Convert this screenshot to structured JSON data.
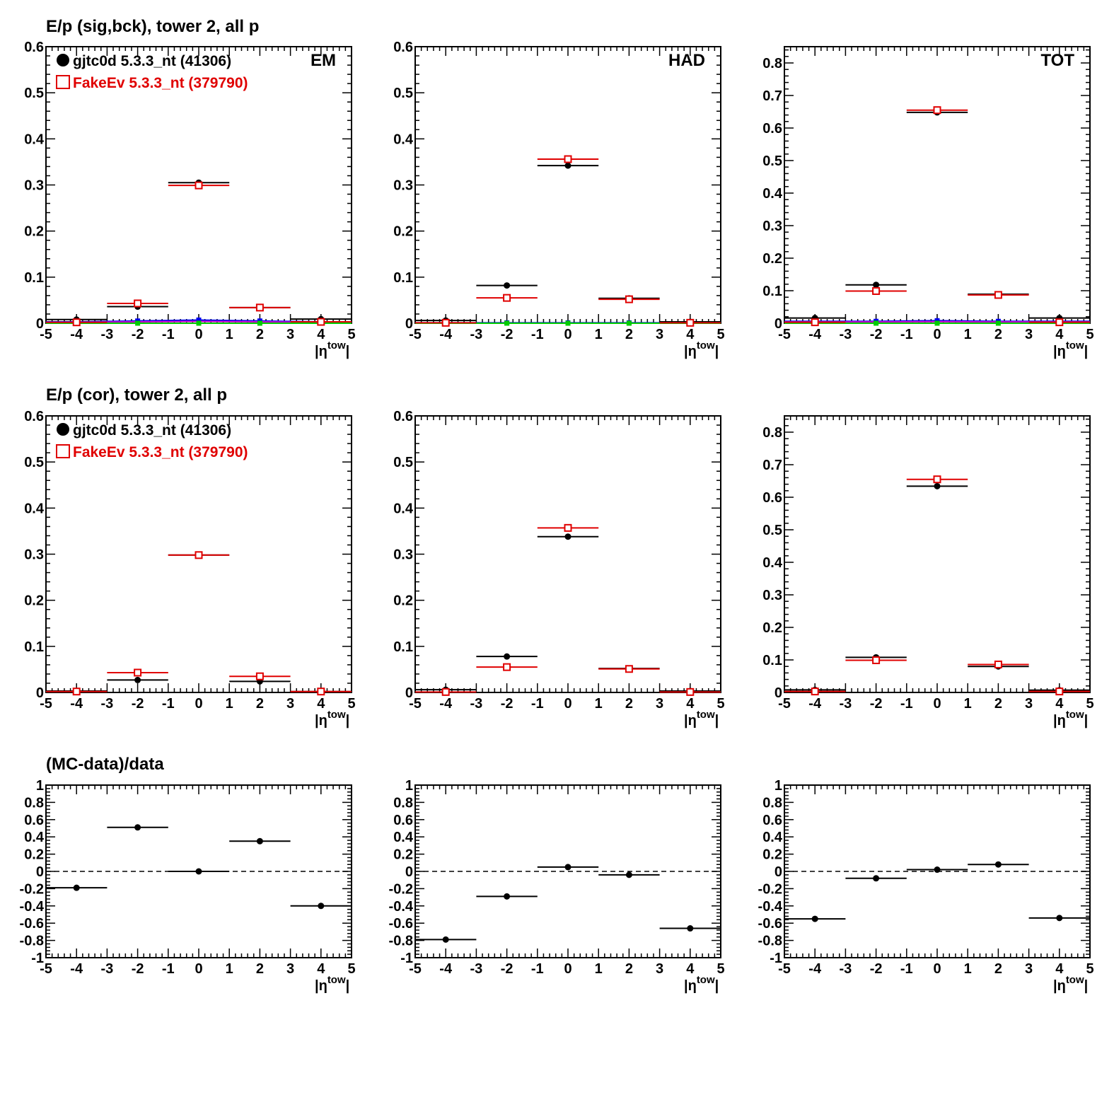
{
  "rows": [
    {
      "title": "E/p (sig,bck), tower 2, all p"
    },
    {
      "title": "E/p (cor), tower 2, all p"
    },
    {
      "title": "(MC-data)/data"
    }
  ],
  "legend": {
    "data_label": "gjtc0d 5.3.3_nt (41306)",
    "mc_label": "FakeEv 5.3.3_nt (379790)"
  },
  "colors": {
    "data": "#000000",
    "mc": "#e00000",
    "blue": "#0000ee",
    "green": "#00cc00",
    "magenta": "#cc00cc"
  },
  "xlabel_main": "|η",
  "xlabel_sup": "tow",
  "xlabel_end": "|",
  "chart_data": [
    {
      "type": "scatter",
      "row": 0,
      "col": 0,
      "corner_label": "EM",
      "xlim": [
        -5,
        5
      ],
      "ylim": [
        0,
        0.6
      ],
      "xticks": [
        -5,
        -4,
        -3,
        -2,
        -1,
        0,
        1,
        2,
        3,
        4,
        5
      ],
      "yticks": [
        0,
        0.1,
        0.2,
        0.3,
        0.4,
        0.5,
        0.6
      ],
      "x": [
        -4,
        -2,
        0,
        2,
        4
      ],
      "series": [
        {
          "name": "gjtc0d 5.3.3_nt (41306)",
          "marker": "dot",
          "color": "#000000",
          "values": [
            0.008,
            0.036,
            0.305,
            0.034,
            0.009
          ]
        },
        {
          "name": "FakeEv 5.3.3_nt (379790)",
          "marker": "open-square",
          "color": "#e00000",
          "values": [
            0.002,
            0.043,
            0.299,
            0.034,
            0.003
          ]
        }
      ],
      "bg_lines": [
        {
          "color": "#0000ee",
          "values": [
            0.003,
            0.005,
            0.007,
            0.005,
            0.003
          ],
          "markers": true
        },
        {
          "color": "#cc00cc",
          "values": [
            0.002,
            0.003,
            0.004,
            0.003,
            0.002
          ],
          "markers": false
        },
        {
          "color": "#00cc00",
          "values": [
            0.0,
            0.0,
            0.0,
            0.0,
            0.0
          ],
          "markers": true
        }
      ]
    },
    {
      "type": "scatter",
      "row": 0,
      "col": 1,
      "corner_label": "HAD",
      "xlim": [
        -5,
        5
      ],
      "ylim": [
        0,
        0.6
      ],
      "xticks": [
        -5,
        -4,
        -3,
        -2,
        -1,
        0,
        1,
        2,
        3,
        4,
        5
      ],
      "yticks": [
        0,
        0.1,
        0.2,
        0.3,
        0.4,
        0.5,
        0.6
      ],
      "x": [
        -4,
        -2,
        0,
        2,
        4
      ],
      "series": [
        {
          "name": "gjtc0d 5.3.3_nt (41306)",
          "marker": "dot",
          "color": "#000000",
          "values": [
            0.006,
            0.082,
            0.342,
            0.054,
            0.003
          ]
        },
        {
          "name": "FakeEv 5.3.3_nt (379790)",
          "marker": "open-square",
          "color": "#e00000",
          "values": [
            0.001,
            0.055,
            0.356,
            0.052,
            0.001
          ]
        }
      ],
      "bg_lines": [
        {
          "color": "#0000ee",
          "values": [
            0.001,
            0.001,
            0.001,
            0.001,
            0.001
          ],
          "markers": true
        },
        {
          "color": "#00cc00",
          "values": [
            0.0,
            0.0,
            0.0,
            0.0,
            0.0
          ],
          "markers": true
        }
      ]
    },
    {
      "type": "scatter",
      "row": 0,
      "col": 2,
      "corner_label": "TOT",
      "xlim": [
        -5,
        5
      ],
      "ylim": [
        0,
        0.85
      ],
      "xticks": [
        -5,
        -4,
        -3,
        -2,
        -1,
        0,
        1,
        2,
        3,
        4,
        5
      ],
      "yticks": [
        0,
        0.1,
        0.2,
        0.3,
        0.4,
        0.5,
        0.6,
        0.7,
        0.8
      ],
      "x": [
        -4,
        -2,
        0,
        2,
        4
      ],
      "series": [
        {
          "name": "gjtc0d 5.3.3_nt (41306)",
          "marker": "dot",
          "color": "#000000",
          "values": [
            0.016,
            0.118,
            0.648,
            0.089,
            0.016
          ]
        },
        {
          "name": "FakeEv 5.3.3_nt (379790)",
          "marker": "open-square",
          "color": "#e00000",
          "values": [
            0.003,
            0.099,
            0.655,
            0.087,
            0.003
          ]
        }
      ],
      "bg_lines": [
        {
          "color": "#0000ee",
          "values": [
            0.006,
            0.006,
            0.008,
            0.006,
            0.006
          ],
          "markers": true
        },
        {
          "color": "#cc00cc",
          "values": [
            0.004,
            0.004,
            0.005,
            0.004,
            0.004
          ],
          "markers": false
        },
        {
          "color": "#00cc00",
          "values": [
            0.0,
            0.0,
            0.0,
            0.0,
            0.0
          ],
          "markers": true
        }
      ]
    },
    {
      "type": "scatter",
      "row": 1,
      "col": 0,
      "corner_label": "",
      "xlim": [
        -5,
        5
      ],
      "ylim": [
        0,
        0.6
      ],
      "xticks": [
        -5,
        -4,
        -3,
        -2,
        -1,
        0,
        1,
        2,
        3,
        4,
        5
      ],
      "yticks": [
        0,
        0.1,
        0.2,
        0.3,
        0.4,
        0.5,
        0.6
      ],
      "x": [
        -4,
        -2,
        0,
        2,
        4
      ],
      "series": [
        {
          "name": "gjtc0d 5.3.3_nt (41306)",
          "marker": "dot",
          "color": "#000000",
          "values": [
            0.003,
            0.027,
            0.298,
            0.024,
            0.002
          ]
        },
        {
          "name": "FakeEv 5.3.3_nt (379790)",
          "marker": "open-square",
          "color": "#e00000",
          "values": [
            0.002,
            0.043,
            0.298,
            0.035,
            0.002
          ]
        }
      ],
      "bg_lines": []
    },
    {
      "type": "scatter",
      "row": 1,
      "col": 1,
      "corner_label": "",
      "xlim": [
        -5,
        5
      ],
      "ylim": [
        0,
        0.6
      ],
      "xticks": [
        -5,
        -4,
        -3,
        -2,
        -1,
        0,
        1,
        2,
        3,
        4,
        5
      ],
      "yticks": [
        0,
        0.1,
        0.2,
        0.3,
        0.4,
        0.5,
        0.6
      ],
      "x": [
        -4,
        -2,
        0,
        2,
        4
      ],
      "series": [
        {
          "name": "gjtc0d 5.3.3_nt (41306)",
          "marker": "dot",
          "color": "#000000",
          "values": [
            0.006,
            0.078,
            0.338,
            0.052,
            0.003
          ]
        },
        {
          "name": "FakeEv 5.3.3_nt (379790)",
          "marker": "open-square",
          "color": "#e00000",
          "values": [
            0.001,
            0.055,
            0.357,
            0.051,
            0.001
          ]
        }
      ],
      "bg_lines": []
    },
    {
      "type": "scatter",
      "row": 1,
      "col": 2,
      "corner_label": "",
      "xlim": [
        -5,
        5
      ],
      "ylim": [
        0,
        0.85
      ],
      "xticks": [
        -5,
        -4,
        -3,
        -2,
        -1,
        0,
        1,
        2,
        3,
        4,
        5
      ],
      "yticks": [
        0,
        0.1,
        0.2,
        0.3,
        0.4,
        0.5,
        0.6,
        0.7,
        0.8
      ],
      "x": [
        -4,
        -2,
        0,
        2,
        4
      ],
      "series": [
        {
          "name": "gjtc0d 5.3.3_nt (41306)",
          "marker": "dot",
          "color": "#000000",
          "values": [
            0.008,
            0.108,
            0.634,
            0.08,
            0.007
          ]
        },
        {
          "name": "FakeEv 5.3.3_nt (379790)",
          "marker": "open-square",
          "color": "#e00000",
          "values": [
            0.003,
            0.099,
            0.655,
            0.086,
            0.003
          ]
        }
      ],
      "bg_lines": []
    },
    {
      "type": "scatter",
      "row": 2,
      "col": 0,
      "corner_label": "",
      "xlim": [
        -5,
        5
      ],
      "ylim": [
        -1,
        1
      ],
      "xticks": [
        -5,
        -4,
        -3,
        -2,
        -1,
        0,
        1,
        2,
        3,
        4,
        5
      ],
      "yticks": [
        -1,
        -0.8,
        -0.6,
        -0.4,
        -0.2,
        0,
        0.2,
        0.4,
        0.6,
        0.8,
        1
      ],
      "x": [
        -4,
        -2,
        0,
        2,
        4
      ],
      "zero_line": true,
      "series": [
        {
          "name": "",
          "marker": "dot",
          "color": "#000000",
          "values": [
            -0.19,
            0.51,
            0.0,
            0.35,
            -0.4
          ]
        }
      ],
      "bg_lines": []
    },
    {
      "type": "scatter",
      "row": 2,
      "col": 1,
      "corner_label": "",
      "xlim": [
        -5,
        5
      ],
      "ylim": [
        -1,
        1
      ],
      "xticks": [
        -5,
        -4,
        -3,
        -2,
        -1,
        0,
        1,
        2,
        3,
        4,
        5
      ],
      "yticks": [
        -1,
        -0.8,
        -0.6,
        -0.4,
        -0.2,
        0,
        0.2,
        0.4,
        0.6,
        0.8,
        1
      ],
      "x": [
        -4,
        -2,
        0,
        2,
        4
      ],
      "zero_line": true,
      "series": [
        {
          "name": "",
          "marker": "dot",
          "color": "#000000",
          "values": [
            -0.79,
            -0.29,
            0.05,
            -0.04,
            -0.66
          ]
        }
      ],
      "bg_lines": []
    },
    {
      "type": "scatter",
      "row": 2,
      "col": 2,
      "corner_label": "",
      "xlim": [
        -5,
        5
      ],
      "ylim": [
        -1,
        1
      ],
      "xticks": [
        -5,
        -4,
        -3,
        -2,
        -1,
        0,
        1,
        2,
        3,
        4,
        5
      ],
      "yticks": [
        -1,
        -0.8,
        -0.6,
        -0.4,
        -0.2,
        0,
        0.2,
        0.4,
        0.6,
        0.8,
        1
      ],
      "x": [
        -4,
        -2,
        0,
        2,
        4
      ],
      "zero_line": true,
      "series": [
        {
          "name": "",
          "marker": "dot",
          "color": "#000000",
          "values": [
            -0.55,
            -0.08,
            0.02,
            0.08,
            -0.54
          ]
        }
      ],
      "bg_lines": []
    }
  ]
}
